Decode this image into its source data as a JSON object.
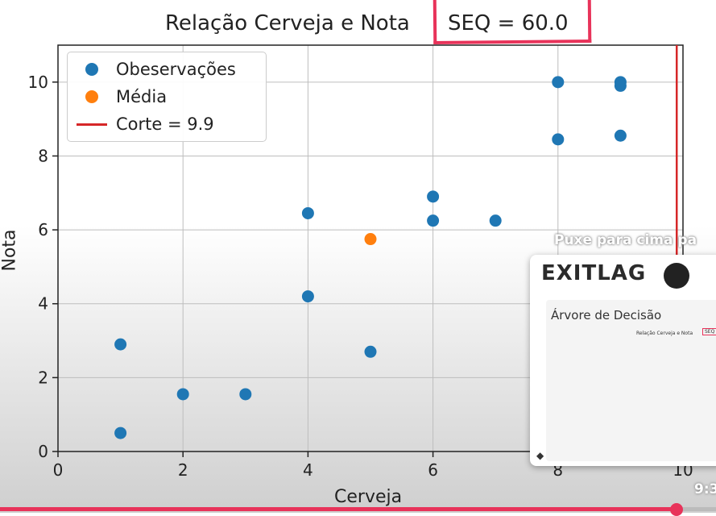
{
  "chart_data": {
    "type": "scatter",
    "title": "Relação Cerveja e Nota",
    "annotation": "SEQ = 60.0",
    "xlabel": "Cerveja",
    "ylabel": "Nota",
    "xlim": [
      0,
      10
    ],
    "ylim": [
      0,
      11
    ],
    "xticks": [
      "0",
      "2",
      "4",
      "6",
      "8",
      "10"
    ],
    "yticks": [
      "0",
      "2",
      "4",
      "6",
      "8",
      "10"
    ],
    "grid": true,
    "legend_position": "top-left",
    "series": [
      {
        "name": "Obeservações",
        "color": "#1f77b4",
        "x": [
          1,
          1,
          2,
          3,
          4,
          4,
          5,
          6,
          6,
          7,
          8,
          8,
          9,
          9,
          9
        ],
        "y": [
          2.9,
          0.5,
          1.55,
          1.55,
          6.45,
          4.2,
          2.7,
          6.9,
          6.25,
          6.25,
          10,
          8.45,
          10,
          9.9,
          8.55
        ]
      },
      {
        "name": "Média",
        "color": "#ff7f0e",
        "x": [
          5
        ],
        "y": [
          5.75
        ]
      }
    ],
    "vline": {
      "name": "Corte = 9.9",
      "x": 9.9,
      "color": "#d62728"
    }
  },
  "legend": {
    "obs_label": "Obeservações",
    "media_label": "Média",
    "corte_label": "Corte = 9.9"
  },
  "overlay": {
    "pull_hint": "Puxe para cima pa",
    "brand": "EXITLAG",
    "subtitle": "Árvore de Decisão",
    "mini_title": "Relação Cerveja e Nota",
    "mini_seq": "SEQ"
  },
  "player": {
    "time": "9:3",
    "progress_fraction": 0.945,
    "accent_color": "#e8335a"
  }
}
